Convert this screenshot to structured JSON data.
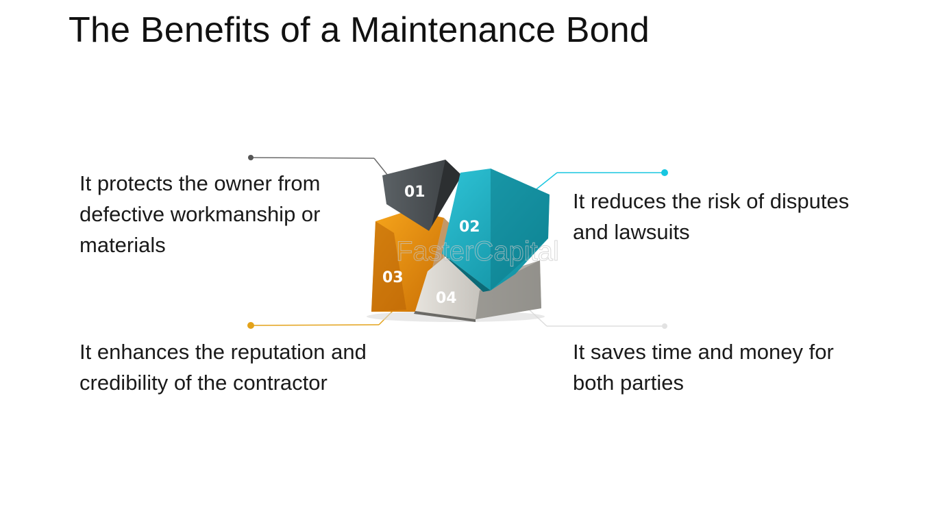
{
  "title": "The Benefits of a Maintenance Bond",
  "benefits": [
    {
      "number": "01",
      "text": "It protects the owner from defective workmanship or materials",
      "color": "#4a4f53"
    },
    {
      "number": "02",
      "text": "It reduces the risk of disputes and lawsuits",
      "color": "#1aa9be"
    },
    {
      "number": "03",
      "text": "It enhances the reputation and credibility of the contractor",
      "color": "#e8940d"
    },
    {
      "number": "04",
      "text": "It saves time and money for both parties",
      "color": "#cfccc6"
    }
  ],
  "watermark": "FasterCapital",
  "colors": {
    "leader_dark": "#555555",
    "leader_cyan": "#18c6e0",
    "leader_orange": "#e3a21a",
    "leader_light": "#d9d9d9"
  }
}
